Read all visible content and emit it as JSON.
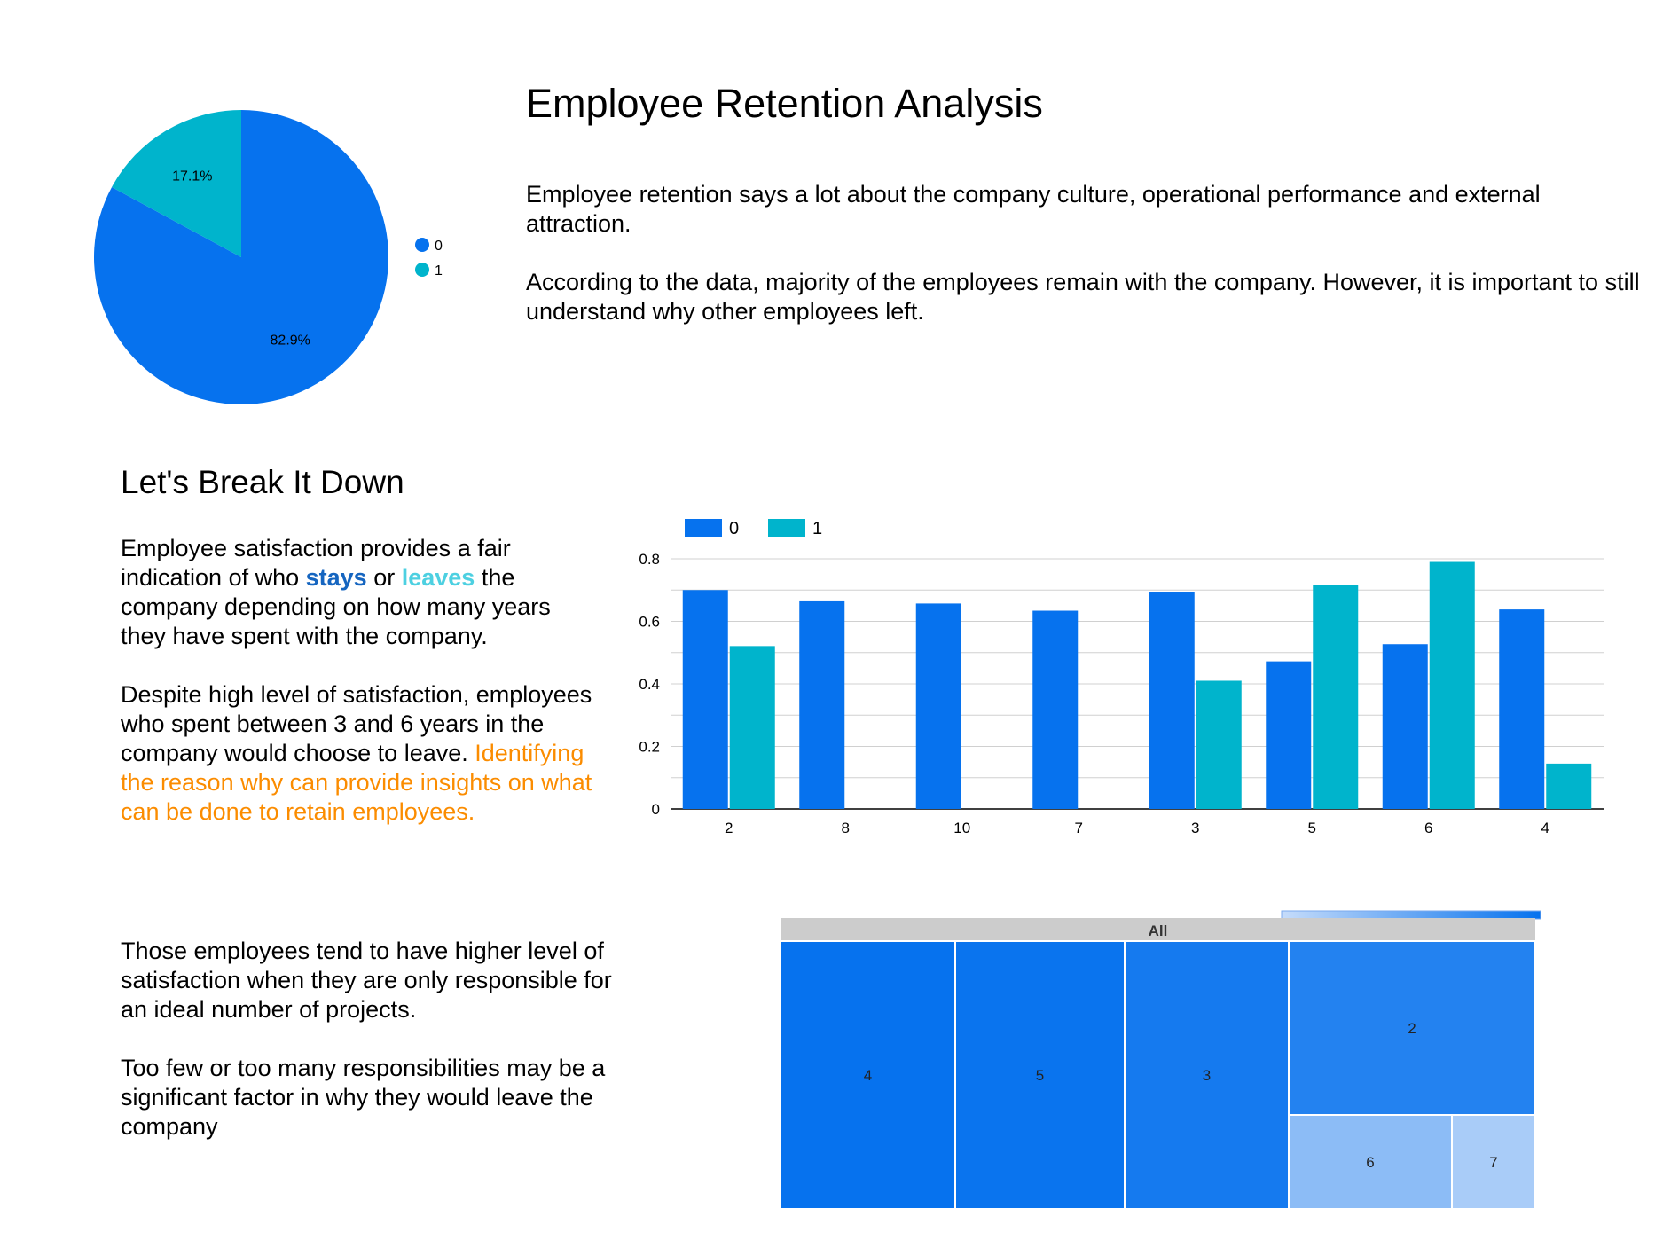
{
  "header": {
    "title": "Employee Retention Analysis",
    "intro_paragraphs": [
      "Employee retention says a lot about the company culture, operational performance and external attraction.",
      "According to the data, majority of the employees remain with the company. However, it is important to still understand why other employees left."
    ]
  },
  "breakdown": {
    "heading": "Let's Break It Down",
    "p1": {
      "part1": "Employee satisfaction provides a fair indication of who ",
      "stays": "stays",
      "part2": " or ",
      "leaves": "leaves",
      "part3": " the company depending on how many years they have spent with the company."
    },
    "p2": {
      "part1": "Despite high level of satisfaction, employees who spent between 3 and 6 years in the company would choose to leave. ",
      "highlight": "Identifying the reason why can provide insights on what can be done to retain employees."
    }
  },
  "projects_text": {
    "paragraphs": [
      "Those employees tend to have higher level of satisfaction when they are only responsible for an ideal number of projects.",
      "Too few or too many responsibilities may be a significant factor in why they would leave the company"
    ]
  },
  "colors": {
    "series_0": "#0672ee",
    "series_1": "#00b4cc",
    "stays": "#1565c0",
    "leaves": "#4dd0e1",
    "highlight": "#fb8c00",
    "treemap_header": "#cccccc"
  },
  "chart_data": [
    {
      "type": "pie",
      "labels": [
        "0",
        "1"
      ],
      "values": [
        82.9,
        17.1
      ],
      "value_labels": [
        "82.9%",
        "17.1%"
      ],
      "legend": "right"
    },
    {
      "type": "bar",
      "categories": [
        "2",
        "8",
        "10",
        "7",
        "3",
        "5",
        "6",
        "4"
      ],
      "series": [
        {
          "name": "0",
          "values": [
            0.7,
            0.664,
            0.657,
            0.634,
            0.695,
            0.472,
            0.527,
            0.638
          ]
        },
        {
          "name": "1",
          "values": [
            0.521,
            null,
            null,
            null,
            0.41,
            0.715,
            0.79,
            0.145
          ]
        }
      ],
      "ylim": [
        0,
        0.8
      ],
      "yticks": [
        "0",
        "0.2",
        "0.4",
        "0.6",
        "0.8"
      ],
      "grid": true,
      "legend": "top-left"
    },
    {
      "type": "treemap",
      "root": "All",
      "nodes": [
        {
          "label": "4",
          "shade": 1.0
        },
        {
          "label": "5",
          "shade": 0.98
        },
        {
          "label": "3",
          "shade": 0.92
        },
        {
          "label": "2",
          "shade": 0.85
        },
        {
          "label": "6",
          "shade": 0.3
        },
        {
          "label": "7",
          "shade": 0.15
        }
      ],
      "color_scale": [
        "#c6dcfa",
        "#0672ee"
      ]
    }
  ]
}
